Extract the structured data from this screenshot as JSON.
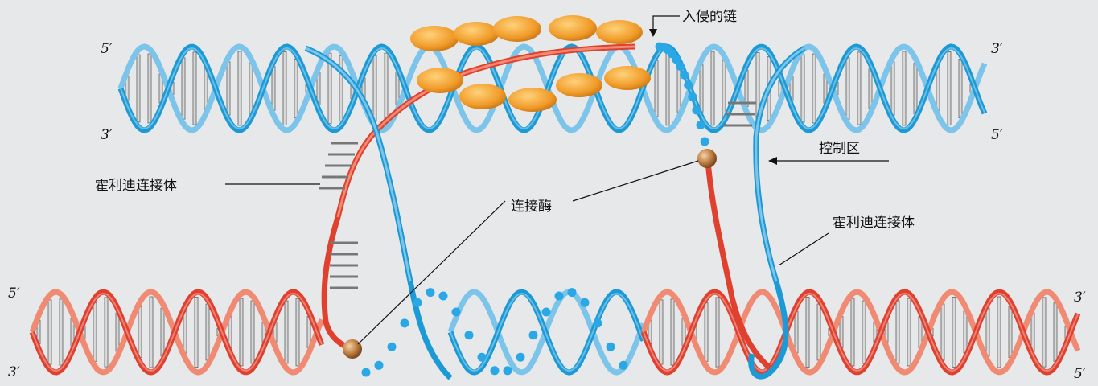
{
  "labels": {
    "invading_strand": "入侵的链",
    "holliday_left": "霍利迪连接体",
    "holliday_right": "霍利迪连接体",
    "ligase": "连接酶",
    "control_region": "控制区"
  },
  "ends": {
    "top_left_upper": "5′",
    "top_left_lower": "3′",
    "top_right_upper": "3′",
    "top_right_lower": "5′",
    "bottom_left_upper": "5′",
    "bottom_left_lower": "3′",
    "bottom_right_upper": "3′",
    "bottom_right_lower": "5′"
  },
  "colors": {
    "blue_strand": "#1c9ad6",
    "blue_light": "#7cc4ea",
    "red_strand": "#e0402e",
    "red_light": "#f08a72",
    "protein": "#f0a030",
    "ligase_ball": "#b8743a",
    "base_pair": "#777777",
    "dotted_strand": "#2aa8e6"
  },
  "icons": {
    "proteins": "orange-ellipse-icon",
    "ligase": "sphere-icon"
  }
}
